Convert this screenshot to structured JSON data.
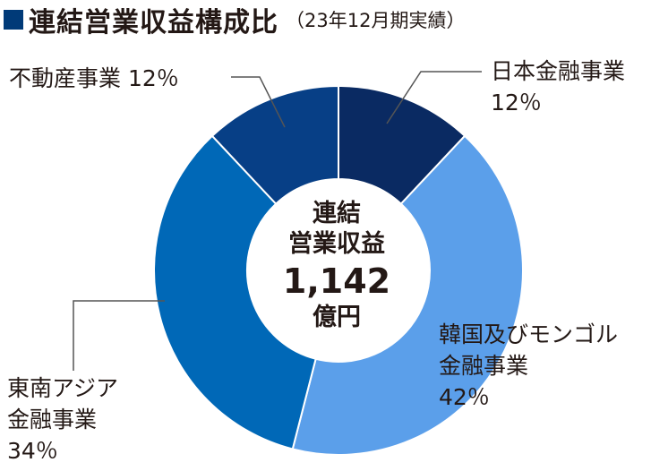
{
  "header": {
    "title": "連結営業収益構成比",
    "subtitle": "（23年12月期実績）"
  },
  "center": {
    "line1": "連結",
    "line2": "営業収益",
    "value": "1,142",
    "unit": "億円"
  },
  "chart_data": {
    "type": "pie",
    "title": "連結営業収益構成比",
    "subtitle": "（23年12月期実績）",
    "total": 1142,
    "total_unit": "億円",
    "slices": [
      {
        "name": "日本金融事業",
        "value": 12,
        "label": "12％",
        "color": "#0a2a62"
      },
      {
        "name": "韓国及びモンゴル金融事業",
        "value": 42,
        "label": "42％",
        "color": "#5b9fea"
      },
      {
        "name": "東南アジア金融事業",
        "value": 34,
        "label": "34％",
        "color": "#0068b7"
      },
      {
        "name": "不動産事業",
        "value": 12,
        "label": "12％",
        "color": "#073f86"
      }
    ]
  },
  "labels": {
    "japan": {
      "line1": "日本金融事業",
      "line2": "12％"
    },
    "korea": {
      "line1": "韓国及びモンゴル",
      "line2": "金融事業",
      "line3": "42％"
    },
    "sea": {
      "line1": "東南アジア",
      "line2": "金融事業",
      "line3": "34％"
    },
    "realestate": {
      "line1": "不動産事業 12％"
    }
  }
}
